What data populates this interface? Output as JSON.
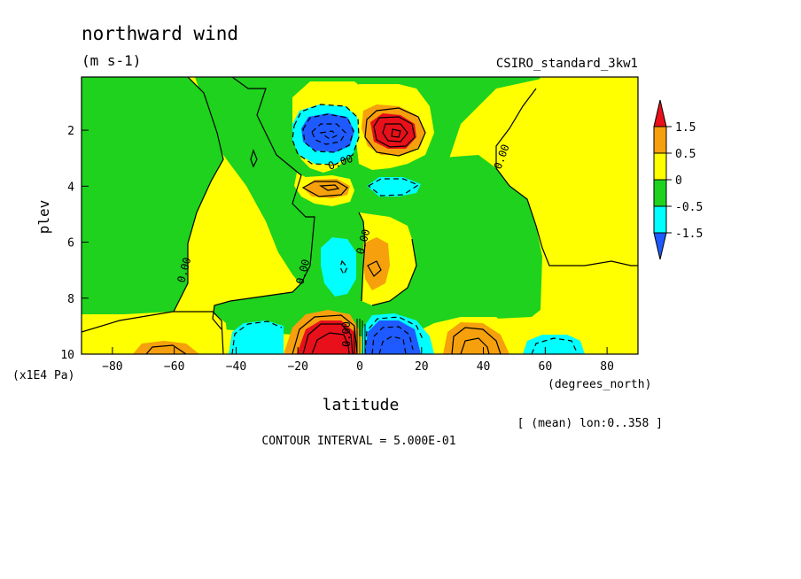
{
  "chart_data": {
    "type": "heatmap",
    "title": "northward wind",
    "units": "(m s-1)",
    "source": "CSIRO_standard_3kw1",
    "xlabel": "latitude",
    "xunits": "(degrees_north)",
    "ylabel": "plev",
    "yunits": "(x1E4 Pa)",
    "xlim": [
      -90,
      90
    ],
    "ylim": [
      10,
      0.1
    ],
    "x_ticks": [
      -80,
      -60,
      -40,
      -20,
      0,
      20,
      40,
      60,
      80
    ],
    "y_ticks": [
      2,
      4,
      6,
      8,
      10
    ],
    "colorbar_levels": [
      "1.5",
      "0.5",
      "0",
      "-0.5",
      "-1.5"
    ],
    "colors": {
      "above_1.5": "#e8101a",
      "0.5_to_1.5": "#f5a00c",
      "0_to_0.5": "#ffff00",
      "-0.5_to_0": "#1ed21e",
      "-1.5_to_-0.5": "#00ffff",
      "below_-1.5": "#1e5aff"
    },
    "contour_labels": [
      "0.00",
      "0.00",
      "0.00",
      "0.00",
      "0.00",
      "0.00"
    ],
    "footer_mean": "[ (mean) lon:0..358 ]",
    "contour_interval": "CONTOUR INTERVAL = 5.000E-01"
  }
}
